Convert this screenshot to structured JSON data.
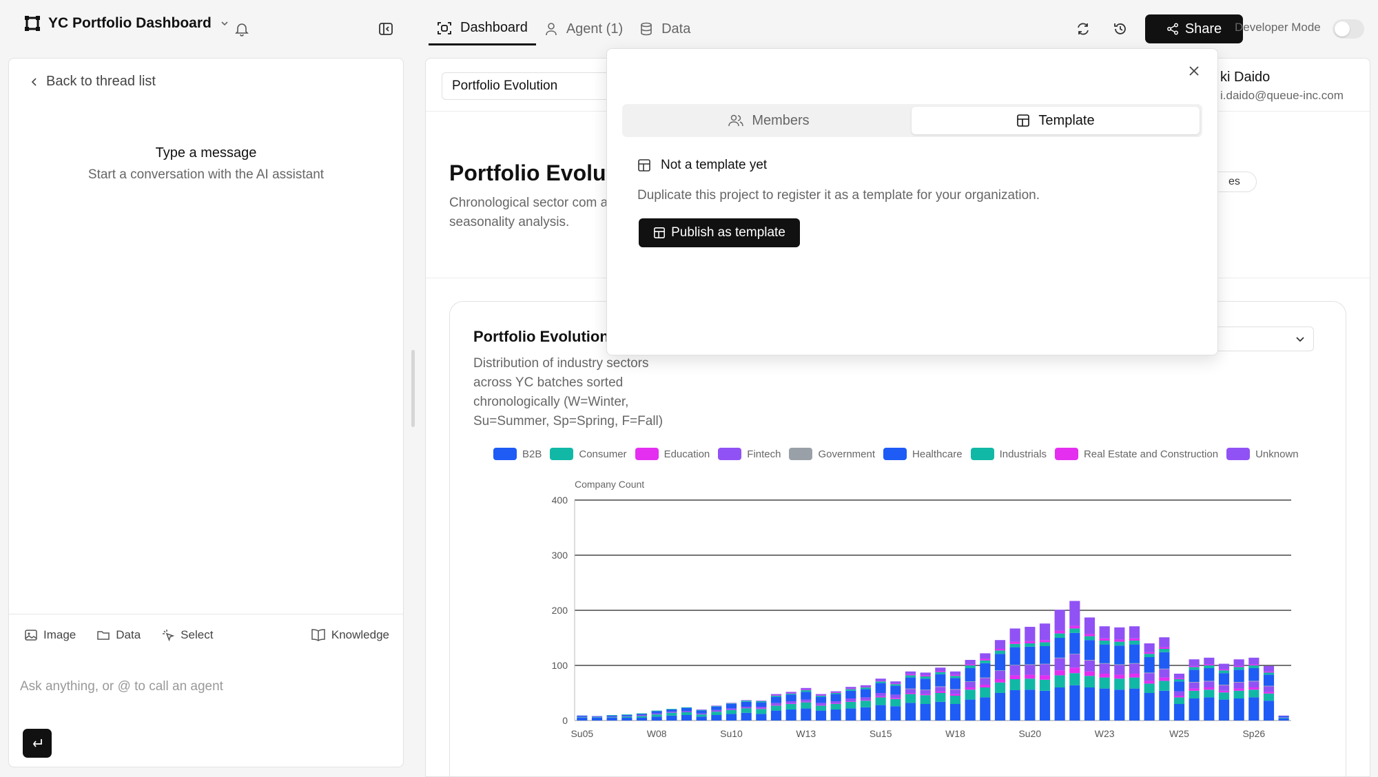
{
  "header": {
    "app_title": "YC Portfolio Dashboard",
    "tabs": [
      {
        "label": "Dashboard"
      },
      {
        "label": "Agent (1)"
      },
      {
        "label": "Data"
      }
    ],
    "share_label": "Share",
    "developer_mode_label": "Developer Mode"
  },
  "thread": {
    "back_label": "Back to thread list",
    "empty_title": "Type a message",
    "empty_subtitle": "Start a conversation with the AI assistant",
    "tools": [
      {
        "label": "Image",
        "icon": "image-icon"
      },
      {
        "label": "Data",
        "icon": "folder-icon"
      },
      {
        "label": "Select",
        "icon": "cursor-icon"
      }
    ],
    "knowledge_label": "Knowledge",
    "input_placeholder": "Ask anything, or @ to call an agent"
  },
  "dashboard": {
    "page_select_value": "Portfolio Evolution",
    "user_name": "ki Daido",
    "user_email": "i.daido@queue-inc.com",
    "page_title": "Portfolio Evoluti",
    "page_description": "Chronological sector com and seasonality analysis.",
    "badge_text": "es",
    "card_title": "Portfolio Evolution",
    "card_description": "Distribution of industry sectors across YC batches sorted chronologically (W=Winter, Su=Summer, Sp=Spring, F=Fall)"
  },
  "popover": {
    "tabs": [
      {
        "label": "Members",
        "icon": "users-icon"
      },
      {
        "label": "Template",
        "icon": "template-icon"
      }
    ],
    "status_title": "Not a template yet",
    "status_description": "Duplicate this project to register it as a template for your organization.",
    "publish_label": "Publish as template"
  },
  "colors": {
    "accent": "#111111",
    "b2b": "#1f5cf5",
    "consumer": "#12b8a6",
    "education": "#e42ff0",
    "fintech": "#9152f5",
    "government": "#9aa0a8"
  },
  "chart_data": {
    "type": "bar",
    "stacked": true,
    "ylabel": "Company Count",
    "ylim": [
      0,
      400
    ],
    "yticks": [
      0,
      100,
      200,
      300,
      400
    ],
    "x_tick_labels": [
      "Su05",
      "W08",
      "Su10",
      "W13",
      "Su15",
      "W18",
      "Su20",
      "W23",
      "W25",
      "Sp26"
    ],
    "x_tick_positions": [
      0,
      5,
      10,
      15,
      20,
      25,
      30,
      35,
      40,
      45
    ],
    "bar_count": 48,
    "legend": [
      {
        "name": "B2B",
        "color": "#1f5cf5"
      },
      {
        "name": "Consumer",
        "color": "#12b8a6"
      },
      {
        "name": "Education",
        "color": "#e42ff0"
      },
      {
        "name": "Fintech",
        "color": "#9152f5"
      },
      {
        "name": "Government",
        "color": "#9aa0a8"
      },
      {
        "name": "Healthcare",
        "color": "#1f5cf5"
      },
      {
        "name": "Industrials",
        "color": "#12b8a6"
      },
      {
        "name": "Real Estate and Construction",
        "color": "#e42ff0"
      },
      {
        "name": "Unknown",
        "color": "#9152f5"
      }
    ],
    "series": [
      {
        "name": "B2B",
        "values": [
          5,
          5,
          5,
          5,
          5,
          7,
          9,
          10,
          7,
          10,
          12,
          14,
          12,
          18,
          20,
          22,
          18,
          20,
          22,
          24,
          28,
          26,
          32,
          30,
          34,
          30,
          38,
          42,
          50,
          55,
          56,
          54,
          60,
          64,
          60,
          58,
          56,
          58,
          50,
          54,
          30,
          40,
          42,
          38,
          40,
          42,
          36,
          4
        ]
      },
      {
        "name": "Consumer",
        "values": [
          1,
          1,
          1,
          2,
          3,
          4,
          5,
          5,
          4,
          6,
          7,
          8,
          9,
          9,
          10,
          11,
          9,
          10,
          12,
          12,
          14,
          13,
          16,
          16,
          16,
          15,
          18,
          18,
          19,
          20,
          20,
          20,
          22,
          22,
          21,
          20,
          20,
          20,
          17,
          18,
          12,
          14,
          14,
          13,
          14,
          14,
          13,
          1
        ]
      },
      {
        "name": "Education",
        "values": [
          0,
          0,
          0,
          0,
          0,
          0,
          0,
          0,
          0,
          0,
          0,
          0,
          1,
          1,
          1,
          1,
          1,
          1,
          1,
          1,
          2,
          2,
          2,
          2,
          3,
          3,
          4,
          5,
          6,
          7,
          7,
          8,
          9,
          10,
          8,
          7,
          7,
          7,
          5,
          6,
          3,
          4,
          4,
          3,
          4,
          4,
          3,
          0
        ]
      },
      {
        "name": "Fintech",
        "values": [
          1,
          1,
          1,
          1,
          2,
          2,
          2,
          2,
          2,
          3,
          3,
          3,
          3,
          4,
          4,
          4,
          4,
          4,
          5,
          5,
          6,
          6,
          7,
          7,
          8,
          8,
          10,
          12,
          15,
          18,
          18,
          20,
          22,
          24,
          20,
          18,
          18,
          18,
          14,
          15,
          8,
          11,
          11,
          10,
          11,
          11,
          10,
          1
        ]
      },
      {
        "name": "Government",
        "values": [
          0,
          0,
          0,
          0,
          0,
          0,
          0,
          0,
          0,
          0,
          0,
          0,
          0,
          0,
          0,
          0,
          0,
          0,
          0,
          0,
          0,
          0,
          1,
          1,
          1,
          1,
          1,
          1,
          1,
          1,
          1,
          1,
          1,
          1,
          1,
          1,
          1,
          1,
          1,
          1,
          0,
          1,
          1,
          1,
          1,
          1,
          1,
          0
        ]
      },
      {
        "name": "Healthcare",
        "values": [
          2,
          1,
          2,
          2,
          2,
          4,
          4,
          6,
          5,
          6,
          8,
          9,
          8,
          11,
          12,
          14,
          11,
          13,
          14,
          15,
          18,
          16,
          20,
          20,
          22,
          20,
          24,
          26,
          30,
          32,
          32,
          32,
          36,
          38,
          36,
          34,
          34,
          34,
          28,
          30,
          18,
          22,
          23,
          21,
          22,
          23,
          20,
          2
        ]
      },
      {
        "name": "Industrials",
        "values": [
          0,
          0,
          1,
          1,
          1,
          1,
          1,
          1,
          1,
          1,
          1,
          2,
          2,
          2,
          2,
          3,
          2,
          2,
          3,
          3,
          3,
          3,
          4,
          4,
          4,
          4,
          5,
          5,
          6,
          6,
          6,
          7,
          8,
          8,
          7,
          7,
          7,
          7,
          6,
          6,
          4,
          5,
          5,
          5,
          5,
          5,
          4,
          0
        ]
      },
      {
        "name": "Real Estate and Construction",
        "values": [
          0,
          0,
          0,
          0,
          0,
          0,
          0,
          0,
          0,
          0,
          0,
          0,
          0,
          1,
          1,
          1,
          1,
          1,
          1,
          1,
          1,
          1,
          2,
          2,
          2,
          2,
          2,
          3,
          3,
          4,
          4,
          4,
          5,
          5,
          4,
          4,
          4,
          4,
          3,
          3,
          2,
          2,
          2,
          2,
          2,
          2,
          2,
          0
        ]
      },
      {
        "name": "Unknown",
        "values": [
          0,
          0,
          0,
          0,
          0,
          0,
          0,
          0,
          1,
          1,
          1,
          1,
          1,
          2,
          2,
          3,
          2,
          2,
          3,
          3,
          4,
          4,
          5,
          5,
          6,
          6,
          8,
          10,
          16,
          24,
          26,
          30,
          38,
          45,
          30,
          22,
          22,
          22,
          16,
          18,
          8,
          12,
          12,
          10,
          12,
          12,
          10,
          1
        ]
      }
    ]
  }
}
